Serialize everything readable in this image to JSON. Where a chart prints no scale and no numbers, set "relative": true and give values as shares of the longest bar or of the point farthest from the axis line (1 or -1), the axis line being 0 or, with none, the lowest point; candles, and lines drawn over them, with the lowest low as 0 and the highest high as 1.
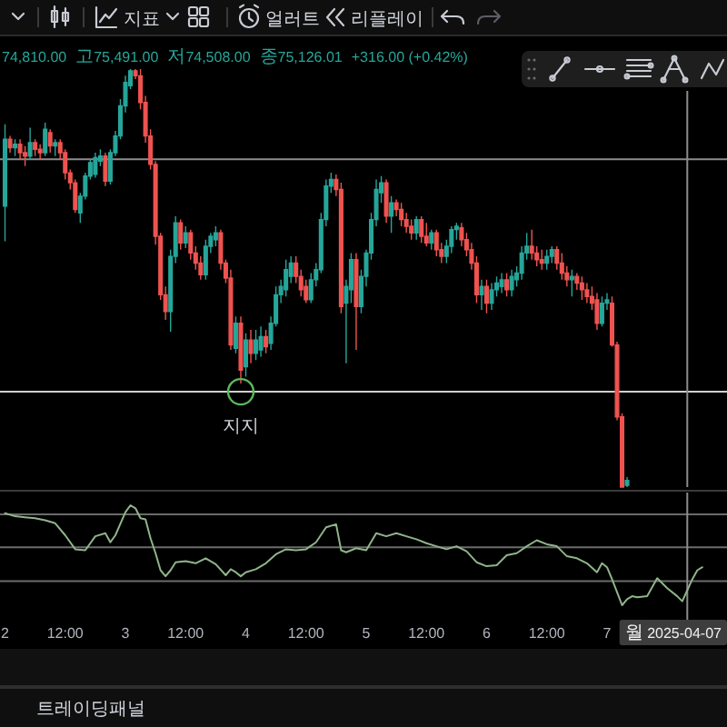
{
  "chart_data": [
    {
      "type": "candlestick",
      "relative": true,
      "tick_labels": false,
      "xlim": [
        "2025-04-01T23:00",
        "2025-04-07T23:55"
      ],
      "x": [
        "2025-04-02T00:00",
        "2025-04-02T01:00",
        "2025-04-02T02:00",
        "2025-04-02T03:00",
        "2025-04-02T04:00",
        "2025-04-02T05:00",
        "2025-04-02T06:00",
        "2025-04-02T07:00",
        "2025-04-02T08:00",
        "2025-04-02T09:00",
        "2025-04-02T10:00",
        "2025-04-02T11:00",
        "2025-04-02T12:00",
        "2025-04-02T13:00",
        "2025-04-02T14:00",
        "2025-04-02T15:00",
        "2025-04-02T16:00",
        "2025-04-02T17:00",
        "2025-04-02T18:00",
        "2025-04-02T19:00",
        "2025-04-02T20:00",
        "2025-04-02T21:00",
        "2025-04-02T22:00",
        "2025-04-02T23:00",
        "2025-04-03T00:00",
        "2025-04-03T01:00",
        "2025-04-03T02:00",
        "2025-04-03T03:00",
        "2025-04-03T04:00",
        "2025-04-03T05:00",
        "2025-04-03T06:00",
        "2025-04-03T07:00",
        "2025-04-03T08:00",
        "2025-04-03T09:00",
        "2025-04-03T10:00",
        "2025-04-03T11:00",
        "2025-04-03T12:00",
        "2025-04-03T13:00",
        "2025-04-03T14:00",
        "2025-04-03T15:00",
        "2025-04-03T16:00",
        "2025-04-03T17:00",
        "2025-04-03T18:00",
        "2025-04-03T19:00",
        "2025-04-03T20:00",
        "2025-04-03T21:00",
        "2025-04-03T22:00",
        "2025-04-03T23:00",
        "2025-04-04T00:00",
        "2025-04-04T01:00",
        "2025-04-04T02:00",
        "2025-04-04T03:00",
        "2025-04-04T04:00",
        "2025-04-04T05:00",
        "2025-04-04T06:00",
        "2025-04-04T07:00",
        "2025-04-04T08:00",
        "2025-04-04T09:00",
        "2025-04-04T10:00",
        "2025-04-04T11:00",
        "2025-04-04T12:00",
        "2025-04-04T13:00",
        "2025-04-04T14:00",
        "2025-04-04T15:00",
        "2025-04-04T16:00",
        "2025-04-04T17:00",
        "2025-04-04T18:00",
        "2025-04-04T19:00",
        "2025-04-04T20:00",
        "2025-04-04T21:00",
        "2025-04-04T22:00",
        "2025-04-04T23:00",
        "2025-04-05T00:00",
        "2025-04-05T01:00",
        "2025-04-05T02:00",
        "2025-04-05T03:00",
        "2025-04-05T04:00",
        "2025-04-05T05:00",
        "2025-04-05T06:00",
        "2025-04-05T07:00",
        "2025-04-05T08:00",
        "2025-04-05T09:00",
        "2025-04-05T10:00",
        "2025-04-05T11:00",
        "2025-04-05T12:00",
        "2025-04-05T13:00",
        "2025-04-05T14:00",
        "2025-04-05T15:00",
        "2025-04-05T16:00",
        "2025-04-05T17:00",
        "2025-04-05T18:00",
        "2025-04-05T19:00",
        "2025-04-05T20:00",
        "2025-04-05T21:00",
        "2025-04-05T22:00",
        "2025-04-05T23:00",
        "2025-04-06T00:00",
        "2025-04-06T01:00",
        "2025-04-06T02:00",
        "2025-04-06T03:00",
        "2025-04-06T04:00",
        "2025-04-06T05:00",
        "2025-04-06T06:00",
        "2025-04-06T07:00",
        "2025-04-06T08:00",
        "2025-04-06T09:00",
        "2025-04-06T10:00",
        "2025-04-06T11:00",
        "2025-04-06T12:00",
        "2025-04-06T13:00",
        "2025-04-06T14:00",
        "2025-04-06T15:00",
        "2025-04-06T16:00",
        "2025-04-06T17:00",
        "2025-04-06T18:00",
        "2025-04-06T19:00",
        "2025-04-06T20:00",
        "2025-04-06T21:00",
        "2025-04-06T22:00",
        "2025-04-06T23:00",
        "2025-04-07T00:00",
        "2025-04-07T01:00",
        "2025-04-07T02:00",
        "2025-04-07T03:00",
        "2025-04-07T04:00"
      ],
      "ohlc": [
        [
          0.672,
          0.868,
          0.588,
          0.832
        ],
        [
          0.832,
          0.84,
          0.8,
          0.812
        ],
        [
          0.812,
          0.832,
          0.792,
          0.82
        ],
        [
          0.82,
          0.832,
          0.784,
          0.8
        ],
        [
          0.8,
          0.816,
          0.768,
          0.792
        ],
        [
          0.792,
          0.86,
          0.784,
          0.824
        ],
        [
          0.824,
          0.832,
          0.792,
          0.808
        ],
        [
          0.808,
          0.82,
          0.784,
          0.8
        ],
        [
          0.8,
          0.872,
          0.792,
          0.856
        ],
        [
          0.848,
          0.856,
          0.8,
          0.816
        ],
        [
          0.816,
          0.832,
          0.792,
          0.824
        ],
        [
          0.824,
          0.832,
          0.784,
          0.8
        ],
        [
          0.8,
          0.808,
          0.736,
          0.752
        ],
        [
          0.752,
          0.76,
          0.712,
          0.728
        ],
        [
          0.728,
          0.736,
          0.656,
          0.664
        ],
        [
          0.656,
          0.704,
          0.632,
          0.696
        ],
        [
          0.696,
          0.752,
          0.688,
          0.744
        ],
        [
          0.744,
          0.784,
          0.736,
          0.776
        ],
        [
          0.748,
          0.8,
          0.74,
          0.788
        ],
        [
          0.78,
          0.808,
          0.768,
          0.792
        ],
        [
          0.792,
          0.8,
          0.72,
          0.732
        ],
        [
          0.732,
          0.808,
          0.724,
          0.8
        ],
        [
          0.8,
          0.852,
          0.792,
          0.84
        ],
        [
          0.84,
          0.928,
          0.832,
          0.912
        ],
        [
          0.912,
          0.984,
          0.896,
          0.968
        ],
        [
          0.96,
          1,
          0.952,
          0.996
        ],
        [
          0.996,
          1,
          0.976,
          0.984
        ],
        [
          0.984,
          1,
          0.904,
          0.92
        ],
        [
          0.92,
          0.936,
          0.824,
          0.84
        ],
        [
          0.84,
          0.856,
          0.76,
          0.772
        ],
        [
          0.772,
          0.78,
          0.58,
          0.6
        ],
        [
          0.6,
          0.608,
          0.448,
          0.46
        ],
        [
          0.46,
          0.48,
          0.4,
          0.42
        ],
        [
          0.42,
          0.568,
          0.372,
          0.552
        ],
        [
          0.552,
          0.648,
          0.536,
          0.632
        ],
        [
          0.632,
          0.64,
          0.568,
          0.584
        ],
        [
          0.584,
          0.624,
          0.572,
          0.608
        ],
        [
          0.608,
          0.616,
          0.544,
          0.56
        ],
        [
          0.56,
          0.576,
          0.52,
          0.536
        ],
        [
          0.536,
          0.552,
          0.496,
          0.508
        ],
        [
          0.508,
          0.592,
          0.496,
          0.576
        ],
        [
          0.576,
          0.608,
          0.56,
          0.6
        ],
        [
          0.592,
          0.624,
          0.576,
          0.608
        ],
        [
          0.608,
          0.616,
          0.52,
          0.536
        ],
        [
          0.536,
          0.544,
          0.488,
          0.5
        ],
        [
          0.5,
          0.52,
          0.328,
          0.34
        ],
        [
          0.332,
          0.408,
          0.32,
          0.392
        ],
        [
          0.392,
          0.408,
          0.248,
          0.28
        ],
        [
          0.288,
          0.368,
          0.264,
          0.352
        ],
        [
          0.352,
          0.376,
          0.296,
          0.32
        ],
        [
          0.32,
          0.376,
          0.304,
          0.352
        ],
        [
          0.328,
          0.384,
          0.312,
          0.36
        ],
        [
          0.36,
          0.376,
          0.32,
          0.336
        ],
        [
          0.344,
          0.408,
          0.328,
          0.392
        ],
        [
          0.392,
          0.48,
          0.384,
          0.46
        ],
        [
          0.46,
          0.496,
          0.44,
          0.48
        ],
        [
          0.472,
          0.544,
          0.456,
          0.52
        ],
        [
          0.504,
          0.552,
          0.488,
          0.536
        ],
        [
          0.536,
          0.552,
          0.488,
          0.504
        ],
        [
          0.504,
          0.52,
          0.456,
          0.472
        ],
        [
          0.48,
          0.496,
          0.44,
          0.448
        ],
        [
          0.448,
          0.512,
          0.44,
          0.496
        ],
        [
          0.496,
          0.536,
          0.48,
          0.52
        ],
        [
          0.52,
          0.656,
          0.512,
          0.64
        ],
        [
          0.64,
          0.736,
          0.624,
          0.72
        ],
        [
          0.72,
          0.752,
          0.704,
          0.736
        ],
        [
          0.736,
          0.748,
          0.696,
          0.712
        ],
        [
          0.712,
          0.728,
          0.416,
          0.432
        ],
        [
          0.44,
          0.496,
          0.296,
          0.48
        ],
        [
          0.472,
          0.56,
          0.44,
          0.544
        ],
        [
          0.544,
          0.56,
          0.328,
          0.432
        ],
        [
          0.432,
          0.52,
          0.416,
          0.504
        ],
        [
          0.504,
          0.568,
          0.48,
          0.56
        ],
        [
          0.56,
          0.656,
          0.544,
          0.64
        ],
        [
          0.64,
          0.736,
          0.624,
          0.712
        ],
        [
          0.704,
          0.744,
          0.68,
          0.728
        ],
        [
          0.728,
          0.736,
          0.632,
          0.648
        ],
        [
          0.648,
          0.696,
          0.608,
          0.68
        ],
        [
          0.68,
          0.688,
          0.648,
          0.664
        ],
        [
          0.664,
          0.68,
          0.624,
          0.64
        ],
        [
          0.64,
          0.656,
          0.608,
          0.624
        ],
        [
          0.624,
          0.64,
          0.592,
          0.608
        ],
        [
          0.608,
          0.648,
          0.592,
          0.64
        ],
        [
          0.64,
          0.648,
          0.584,
          0.6
        ],
        [
          0.6,
          0.632,
          0.576,
          0.584
        ],
        [
          0.584,
          0.616,
          0.568,
          0.608
        ],
        [
          0.608,
          0.616,
          0.552,
          0.568
        ],
        [
          0.568,
          0.584,
          0.536,
          0.552
        ],
        [
          0.552,
          0.592,
          0.536,
          0.576
        ],
        [
          0.576,
          0.624,
          0.56,
          0.616
        ],
        [
          0.616,
          0.632,
          0.592,
          0.624
        ],
        [
          0.62,
          0.632,
          0.576,
          0.592
        ],
        [
          0.592,
          0.608,
          0.552,
          0.568
        ],
        [
          0.568,
          0.584,
          0.52,
          0.536
        ],
        [
          0.536,
          0.552,
          0.44,
          0.46
        ],
        [
          0.46,
          0.496,
          0.424,
          0.48
        ],
        [
          0.48,
          0.496,
          0.416,
          0.44
        ],
        [
          0.44,
          0.488,
          0.424,
          0.472
        ],
        [
          0.472,
          0.504,
          0.456,
          0.488
        ],
        [
          0.48,
          0.512,
          0.464,
          0.496
        ],
        [
          0.496,
          0.512,
          0.456,
          0.472
        ],
        [
          0.472,
          0.52,
          0.456,
          0.504
        ],
        [
          0.496,
          0.528,
          0.48,
          0.512
        ],
        [
          0.512,
          0.576,
          0.496,
          0.56
        ],
        [
          0.56,
          0.608,
          0.544,
          0.576
        ],
        [
          0.576,
          0.616,
          0.544,
          0.56
        ],
        [
          0.56,
          0.576,
          0.528,
          0.544
        ],
        [
          0.544,
          0.568,
          0.52,
          0.536
        ],
        [
          0.536,
          0.568,
          0.52,
          0.552
        ],
        [
          0.552,
          0.576,
          0.536,
          0.568
        ],
        [
          0.568,
          0.576,
          0.52,
          0.536
        ],
        [
          0.536,
          0.56,
          0.496,
          0.512
        ],
        [
          0.512,
          0.528,
          0.48,
          0.496
        ],
        [
          0.496,
          0.52,
          0.456,
          0.504
        ],
        [
          0.504,
          0.512,
          0.472,
          0.488
        ],
        [
          0.488,
          0.504,
          0.448,
          0.472
        ],
        [
          0.472,
          0.488,
          0.44,
          0.456
        ],
        [
          0.456,
          0.48,
          0.424,
          0.44
        ],
        [
          0.448,
          0.464,
          0.376,
          0.392
        ],
        [
          0.392,
          0.456,
          0.384,
          0.44
        ],
        [
          0.44,
          0.464,
          0.424,
          0.448
        ],
        [
          0.44,
          0.456,
          0.336,
          0.34
        ],
        [
          0.34,
          0.348,
          0.16,
          0.168
        ],
        [
          0.168,
          0.176,
          0,
          0
        ],
        [
          0.004,
          0.024,
          0,
          0.016
        ]
      ],
      "ref_lines": [
        {
          "axis": "y",
          "value": 0.784,
          "color": "#8c8c8c"
        },
        {
          "axis": "y",
          "value": 0.228,
          "color": "#d0d0d0"
        },
        {
          "axis": "x",
          "value": "2025-04-07T16:00",
          "color": "#8c8c8c"
        }
      ],
      "annotations": [
        "74,810.00",
        "고75,491.00",
        "저74,508.00",
        "종75,126.01",
        "+316.00 (+0.42%)",
        {
          "text": "지지",
          "x": "2025-04-03T23:00",
          "y": 0.228
        }
      ]
    },
    {
      "type": "line",
      "relative": true,
      "tick_labels": "x",
      "xlim": [
        "2025-04-01T23:00",
        "2025-04-07T23:55"
      ],
      "xticks": [
        {
          "value": "2025-04-02T00:00",
          "label": "2"
        },
        {
          "value": "2025-04-02T12:00",
          "label": "12:00"
        },
        {
          "value": "2025-04-03T00:00",
          "label": "3"
        },
        {
          "value": "2025-04-03T12:00",
          "label": "12:00"
        },
        {
          "value": "2025-04-04T00:00",
          "label": "4"
        },
        {
          "value": "2025-04-04T12:00",
          "label": "12:00"
        },
        {
          "value": "2025-04-05T00:00",
          "label": "5"
        },
        {
          "value": "2025-04-05T12:00",
          "label": "12:00"
        },
        {
          "value": "2025-04-06T00:00",
          "label": "6"
        },
        {
          "value": "2025-04-06T12:00",
          "label": "12:00"
        },
        {
          "value": "2025-04-07T00:00",
          "label": "7"
        }
      ],
      "series": [
        {
          "color": "#8fb58a",
          "x": [
            "2025-04-02T00:00",
            "2025-04-02T02:00",
            "2025-04-02T04:00",
            "2025-04-02T06:00",
            "2025-04-02T08:00",
            "2025-04-02T10:00",
            "2025-04-02T12:00",
            "2025-04-02T14:00",
            "2025-04-02T16:00",
            "2025-04-02T18:00",
            "2025-04-02T20:00",
            "2025-04-02T21:00",
            "2025-04-02T22:00",
            "2025-04-03T00:00",
            "2025-04-03T01:00",
            "2025-04-03T02:00",
            "2025-04-03T03:00",
            "2025-04-03T04:00",
            "2025-04-03T05:00",
            "2025-04-03T06:00",
            "2025-04-03T07:00",
            "2025-04-03T08:00",
            "2025-04-03T09:00",
            "2025-04-03T10:00",
            "2025-04-03T12:00",
            "2025-04-03T14:00",
            "2025-04-03T16:00",
            "2025-04-03T18:00",
            "2025-04-03T20:00",
            "2025-04-03T21:00",
            "2025-04-03T22:00",
            "2025-04-03T23:00",
            "2025-04-04T00:00",
            "2025-04-04T02:00",
            "2025-04-04T04:00",
            "2025-04-04T06:00",
            "2025-04-04T08:00",
            "2025-04-04T10:00",
            "2025-04-04T12:00",
            "2025-04-04T14:00",
            "2025-04-04T16:00",
            "2025-04-04T18:00",
            "2025-04-04T19:00",
            "2025-04-04T20:00",
            "2025-04-04T22:00",
            "2025-04-05T00:00",
            "2025-04-05T02:00",
            "2025-04-05T04:00",
            "2025-04-05T06:00",
            "2025-04-05T08:00",
            "2025-04-05T10:00",
            "2025-04-05T12:00",
            "2025-04-05T14:00",
            "2025-04-05T16:00",
            "2025-04-05T18:00",
            "2025-04-05T20:00",
            "2025-04-05T22:00",
            "2025-04-06T00:00",
            "2025-04-06T02:00",
            "2025-04-06T04:00",
            "2025-04-06T06:00",
            "2025-04-06T08:00",
            "2025-04-06T10:00",
            "2025-04-06T12:00",
            "2025-04-06T14:00",
            "2025-04-06T16:00",
            "2025-04-06T18:00",
            "2025-04-06T20:00",
            "2025-04-06T22:00",
            "2025-04-06T23:00",
            "2025-04-07T00:00",
            "2025-04-07T01:00",
            "2025-04-07T02:00",
            "2025-04-07T03:00",
            "2025-04-07T04:00",
            "2025-04-07T05:00",
            "2025-04-07T06:00",
            "2025-04-07T08:00",
            "2025-04-07T10:00",
            "2025-04-07T12:00",
            "2025-04-07T14:00",
            "2025-04-07T15:00",
            "2025-04-07T16:00",
            "2025-04-07T17:00",
            "2025-04-07T18:00",
            "2025-04-07T19:00"
          ],
          "values": [
            0.92,
            0.89,
            0.88,
            0.87,
            0.85,
            0.82,
            0.7,
            0.56,
            0.55,
            0.69,
            0.72,
            0.63,
            0.7,
            0.93,
            1,
            0.97,
            0.87,
            0.86,
            0.67,
            0.52,
            0.35,
            0.29,
            0.35,
            0.43,
            0.44,
            0.42,
            0.47,
            0.41,
            0.3,
            0.36,
            0.33,
            0.29,
            0.33,
            0.36,
            0.42,
            0.51,
            0.56,
            0.55,
            0.56,
            0.63,
            0.78,
            0.81,
            0.55,
            0.53,
            0.57,
            0.55,
            0.72,
            0.69,
            0.72,
            0.69,
            0.66,
            0.62,
            0.59,
            0.56,
            0.59,
            0.54,
            0.43,
            0.39,
            0.4,
            0.5,
            0.52,
            0.59,
            0.65,
            0.61,
            0.59,
            0.49,
            0.47,
            0.42,
            0.33,
            0.42,
            0.38,
            0.26,
            0.13,
            0,
            0.06,
            0.09,
            0.08,
            0.09,
            0.27,
            0.17,
            0.09,
            0.04,
            0.15,
            0.26,
            0.35,
            0.38
          ]
        }
      ],
      "ref_lines": [
        {
          "axis": "y",
          "value": 0.91,
          "color": "#6b6b6b"
        },
        {
          "axis": "y",
          "value": 0.58,
          "color": "#6b6b6b"
        },
        {
          "axis": "y",
          "value": 0.24,
          "color": "#6b6b6b"
        },
        {
          "axis": "x",
          "value": "2025-04-07T16:00",
          "label": "월 2025-04-07",
          "color": "#8c8c8c"
        }
      ]
    },
    {
      "type": "other",
      "annotations": [
        "지표",
        "얼러트",
        "리플레이",
        "트레이딩패널"
      ]
    }
  ]
}
